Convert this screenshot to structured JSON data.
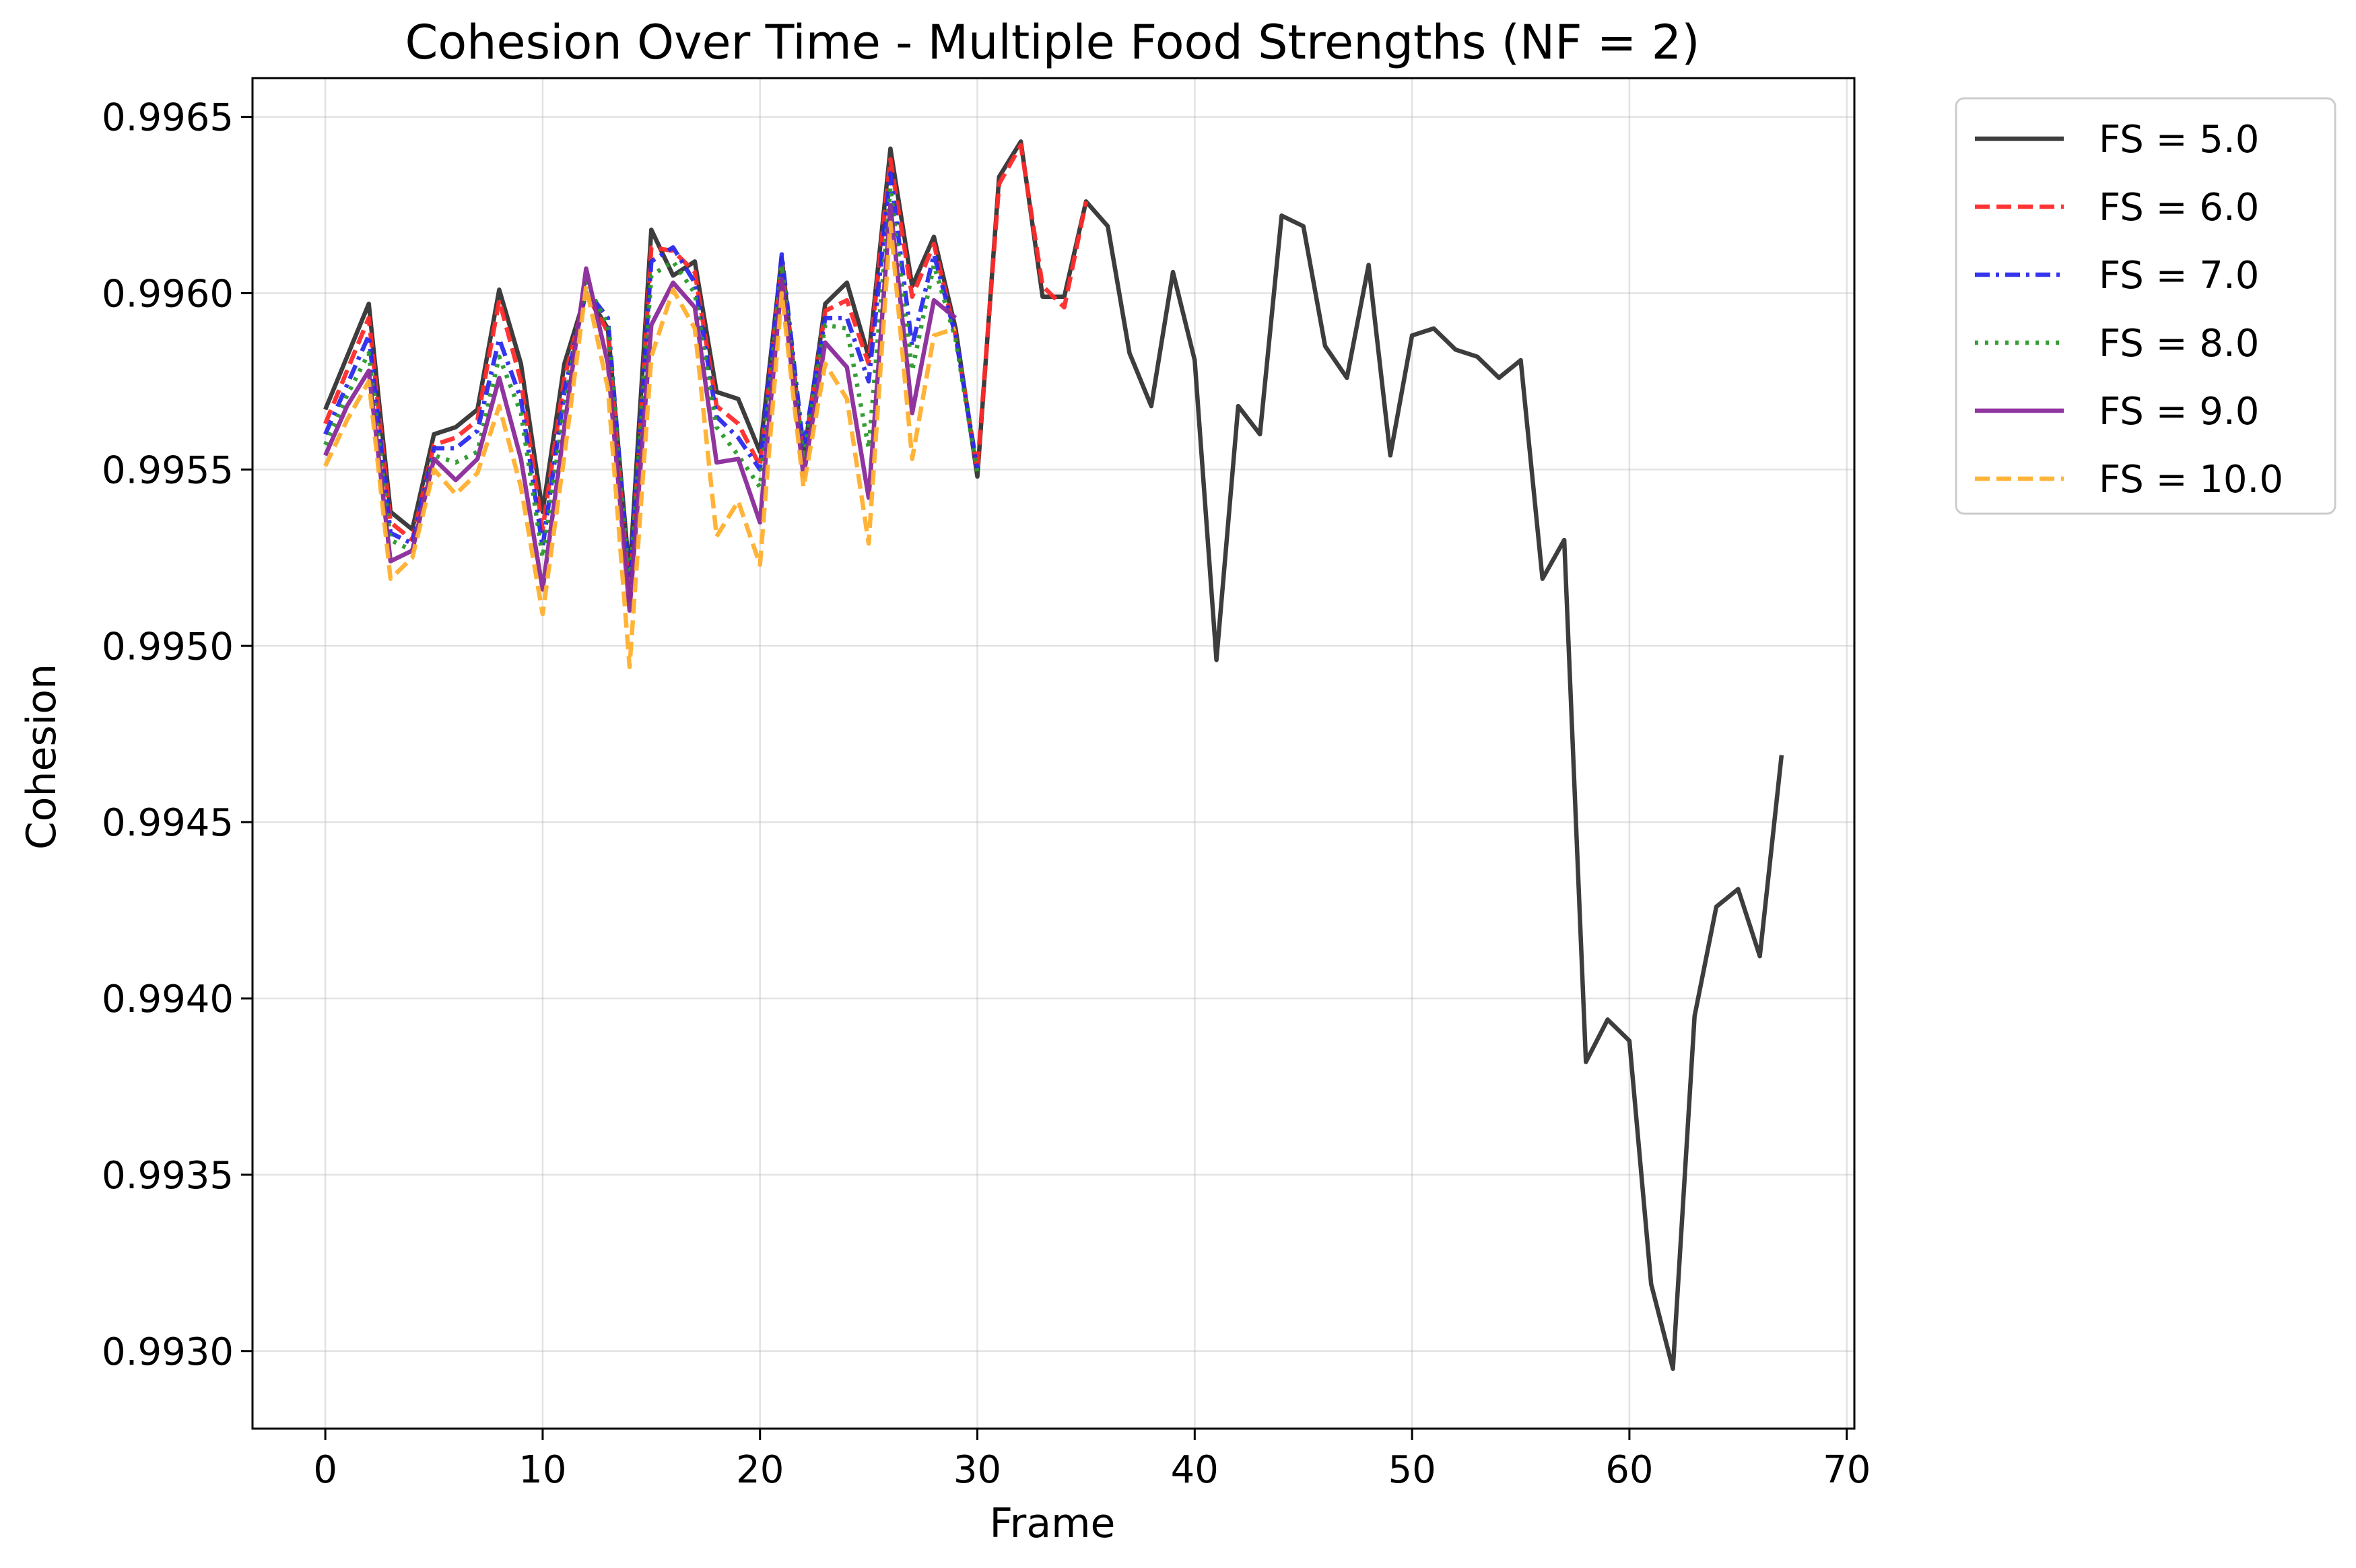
{
  "chart_data": {
    "type": "line",
    "title": "Cohesion Over Time - Multiple Food Strengths (NF = 2)",
    "xlabel": "Frame",
    "ylabel": "Cohesion",
    "xlim": [
      -3.35,
      70.35
    ],
    "ylim": [
      0.99278,
      0.99661
    ],
    "xticks": [
      0,
      10,
      20,
      30,
      40,
      50,
      60,
      70
    ],
    "yticks": [
      0.993,
      0.9935,
      0.994,
      0.9945,
      0.995,
      0.9955,
      0.996,
      0.9965
    ],
    "ytick_labels": [
      "0.9930",
      "0.9935",
      "0.9940",
      "0.9945",
      "0.9950",
      "0.9955",
      "0.9960",
      "0.9965"
    ],
    "xtick_labels": [
      "0",
      "10",
      "20",
      "30",
      "40",
      "50",
      "60",
      "70"
    ],
    "grid": true,
    "legend_position": "outside-top-right",
    "series": [
      {
        "name": "FS = 5.0",
        "color": "#333333",
        "dash": "solid",
        "values": [
          0.99567,
          0.99582,
          0.99597,
          0.99538,
          0.99533,
          0.9956,
          0.99562,
          0.99567,
          0.99601,
          0.9958,
          0.99538,
          0.9958,
          0.996,
          0.9959,
          0.9952,
          0.99618,
          0.99605,
          0.99609,
          0.99572,
          0.9957,
          0.99555,
          0.9961,
          0.99553,
          0.99597,
          0.99603,
          0.99582,
          0.99641,
          0.99602,
          0.99616,
          0.9959,
          0.99548,
          0.99633,
          0.99643,
          0.99599,
          0.99599,
          0.99626,
          0.99619,
          0.99583,
          0.99568,
          0.99606,
          0.99581,
          0.99496,
          0.99568,
          0.9956,
          0.99622,
          0.99619,
          0.99585,
          0.99576,
          0.99608,
          0.99554,
          0.99588,
          0.9959,
          0.99584,
          0.99582,
          0.99576,
          0.99581,
          0.99519,
          0.9953,
          0.99382,
          0.99394,
          0.99388,
          0.99319,
          0.99295,
          0.99395,
          0.99426,
          0.99431,
          0.99412,
          0.99469
        ]
      },
      {
        "name": "FS = 6.0",
        "color": "#ff2a2a",
        "dash": "dashed",
        "values": [
          0.99563,
          0.99578,
          0.99593,
          0.99535,
          0.9953,
          0.99557,
          0.99559,
          0.99564,
          0.99598,
          0.99575,
          0.99533,
          0.99576,
          0.996,
          0.99589,
          0.99513,
          0.99613,
          0.99612,
          0.99606,
          0.99568,
          0.99563,
          0.99551,
          0.99608,
          0.99553,
          0.99595,
          0.99598,
          0.9958,
          0.99638,
          0.99599,
          0.99614,
          0.99588,
          0.9955,
          0.99631,
          0.99642,
          0.99602,
          0.99596,
          0.99626
        ]
      },
      {
        "name": "FS = 7.0",
        "color": "#2a2aee",
        "dash": "dashdot",
        "values": [
          0.9956,
          0.99574,
          0.99588,
          0.99532,
          0.99529,
          0.99556,
          0.99556,
          0.99561,
          0.99587,
          0.9957,
          0.99528,
          0.99572,
          0.99601,
          0.99593,
          0.99517,
          0.99609,
          0.99613,
          0.99603,
          0.99565,
          0.99559,
          0.9955,
          0.99611,
          0.99556,
          0.99593,
          0.99593,
          0.99575,
          0.99634,
          0.99585,
          0.99611,
          0.99588,
          0.9955
        ]
      },
      {
        "name": "FS = 8.0",
        "color": "#2a9a2a",
        "dash": "dotted",
        "values": [
          0.99557,
          0.99571,
          0.99583,
          0.9953,
          0.99527,
          0.99554,
          0.99552,
          0.99555,
          0.99582,
          0.99566,
          0.99525,
          0.99568,
          0.99603,
          0.99591,
          0.99516,
          0.99605,
          0.99609,
          0.996,
          0.99562,
          0.99554,
          0.99545,
          0.99608,
          0.99553,
          0.99591,
          0.9959,
          0.99556,
          0.9963,
          0.99578,
          0.99608,
          0.99587,
          0.99549
        ]
      },
      {
        "name": "FS = 9.0",
        "color": "#8a2a9a",
        "dash": "solid",
        "values": [
          0.99554,
          0.99568,
          0.99578,
          0.99524,
          0.99527,
          0.99553,
          0.99547,
          0.99553,
          0.99576,
          0.99553,
          0.99516,
          0.99562,
          0.99607,
          0.9958,
          0.9951,
          0.99591,
          0.99603,
          0.99596,
          0.99552,
          0.99553,
          0.99535,
          0.99604,
          0.99548,
          0.99586,
          0.99579,
          0.99542,
          0.99625,
          0.99566,
          0.99598,
          0.99593
        ]
      },
      {
        "name": "FS = 10.0",
        "color": "#ffb02e",
        "dash": "dashed",
        "values": [
          0.99551,
          0.99564,
          0.99575,
          0.99519,
          0.99525,
          0.9955,
          0.99543,
          0.99549,
          0.99568,
          0.99545,
          0.99509,
          0.99554,
          0.99602,
          0.99573,
          0.99494,
          0.99582,
          0.99601,
          0.9959,
          0.99531,
          0.99541,
          0.99523,
          0.996,
          0.99545,
          0.9958,
          0.9957,
          0.99529,
          0.9962,
          0.99553,
          0.99588,
          0.9959
        ]
      }
    ]
  }
}
